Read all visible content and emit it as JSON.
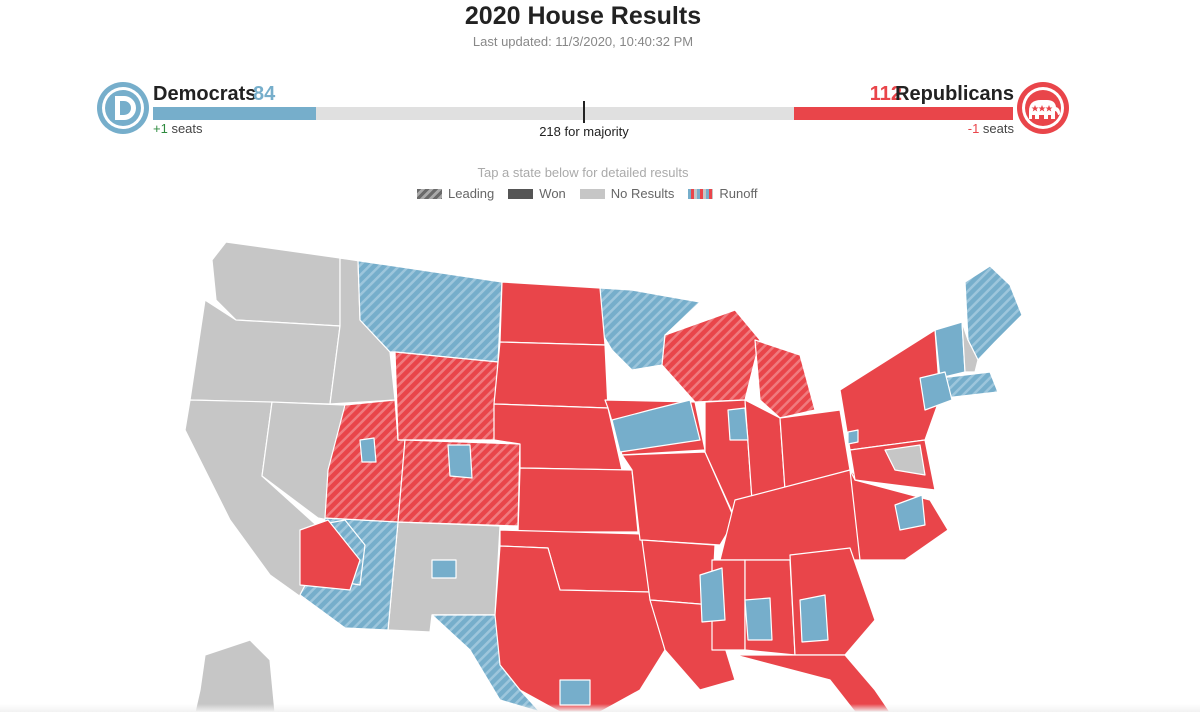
{
  "header": {
    "title": "2020 House Results",
    "updated": "Last updated: 11/3/2020, 10:40:32 PM"
  },
  "democrats": {
    "name": "Democrats",
    "seats": "84",
    "change_value": "+1",
    "change_suffix": " seats",
    "color": "#76aecb",
    "logo_letter": "D"
  },
  "republicans": {
    "name": "Republicans",
    "seats": "112",
    "change_value": "-1",
    "change_suffix": " seats",
    "color": "#e9454a",
    "logo_icon": "elephant-icon"
  },
  "majority": "218 for majority",
  "tap_note": "Tap a state below for detailed results",
  "legend": {
    "leading": "Leading",
    "won": "Won",
    "no_results": "No Results",
    "runoff": "Runoff"
  },
  "colors": {
    "dem": "#76aecb",
    "rep": "#e9454a",
    "no_results": "#c6c6c6"
  }
}
